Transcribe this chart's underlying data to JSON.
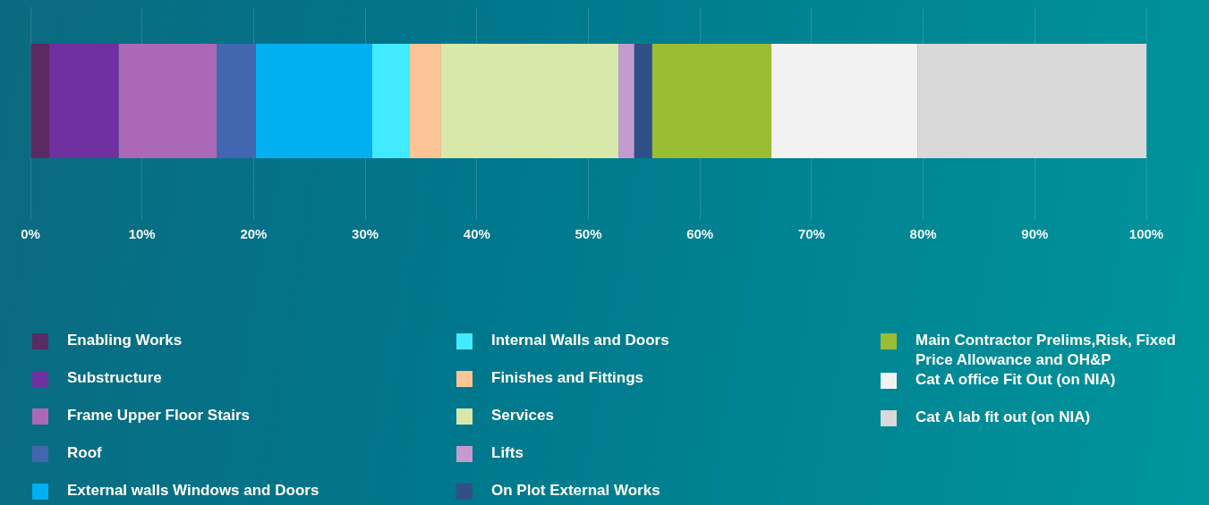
{
  "chart_data": {
    "type": "bar",
    "orientation": "horizontal",
    "stacked": true,
    "categories": [
      null
    ],
    "series": [
      {
        "name": "Enabling Works",
        "color": "#5a2a62",
        "values": [
          1.7
        ]
      },
      {
        "name": "Substructure",
        "color": "#7030a0",
        "values": [
          6.2
        ]
      },
      {
        "name": "Frame Upper Floor Stairs",
        "color": "#ab68b7",
        "values": [
          8.8
        ]
      },
      {
        "name": "Roof",
        "color": "#4267b0",
        "values": [
          3.5
        ]
      },
      {
        "name": "External walls Windows and Doors",
        "color": "#00b0f0",
        "values": [
          10.4
        ]
      },
      {
        "name": "Internal Walls and Doors",
        "color": "#42eaff",
        "values": [
          3.4
        ]
      },
      {
        "name": "Finishes and Fittings",
        "color": "#fdc496",
        "values": [
          2.8
        ]
      },
      {
        "name": "Services",
        "color": "#d8e8ab",
        "values": [
          15.9
        ]
      },
      {
        "name": "Lifts",
        "color": "#c49bcf",
        "values": [
          1.4
        ]
      },
      {
        "name": "On Plot External Works",
        "color": "#304f86",
        "values": [
          1.6
        ]
      },
      {
        "name": "Main Contractor Prelims,Risk, Fixed Price Allowance and OH&P",
        "color": "#99bd33",
        "values": [
          10.7
        ]
      },
      {
        "name": "Cat A office Fit Out (on NIA)",
        "color": "#f2f2f2",
        "values": [
          13.1
        ]
      },
      {
        "name": "Cat A lab fit out (on NIA)",
        "color": "#d9d9d9",
        "values": [
          20.5
        ]
      }
    ],
    "xlim": [
      0,
      100
    ],
    "xticks": [
      {
        "value": 0,
        "label": "0%"
      },
      {
        "value": 10,
        "label": "10%"
      },
      {
        "value": 20,
        "label": "20%"
      },
      {
        "value": 30,
        "label": "30%"
      },
      {
        "value": 40,
        "label": "40%"
      },
      {
        "value": 50,
        "label": "50%"
      },
      {
        "value": 60,
        "label": "60%"
      },
      {
        "value": 70,
        "label": "70%"
      },
      {
        "value": 80,
        "label": "80%"
      },
      {
        "value": 90,
        "label": "90%"
      },
      {
        "value": 100,
        "label": "100%"
      }
    ],
    "grid": "x",
    "legend": "bottom"
  }
}
